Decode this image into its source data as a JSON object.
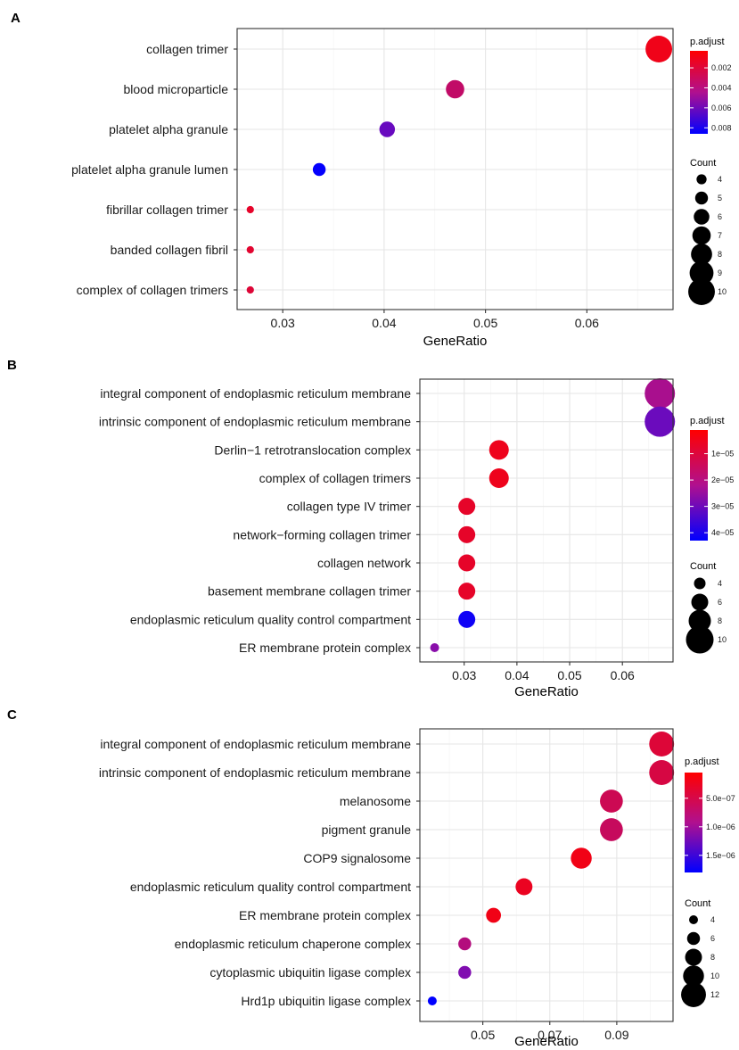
{
  "chart_data": [
    {
      "type": "scatter",
      "panel": "A",
      "xlabel": "GeneRatio",
      "ylabel": "",
      "xlim": [
        0.0255,
        0.0685
      ],
      "xticks": [
        0.03,
        0.04,
        0.05,
        0.06
      ],
      "xtick_labels": [
        "0.03",
        "0.04",
        "0.05",
        "0.06"
      ],
      "categories": [
        "collagen trimer",
        "blood microparticle",
        "platelet alpha granule",
        "platelet alpha granule lumen",
        "fibrillar collagen trimer",
        "banded collagen fibril",
        "complex of collagen trimers"
      ],
      "x": [
        0.0671,
        0.047,
        0.0403,
        0.0336,
        0.0268,
        0.0268,
        0.0268
      ],
      "count": [
        10,
        7,
        6,
        5,
        3,
        3,
        3
      ],
      "p_adjust": [
        0.0008,
        0.0031,
        0.0059,
        0.0085,
        0.0013,
        0.0015,
        0.0017
      ],
      "color_legend": {
        "title": "p.adjust",
        "range": [
          0.0003,
          0.0086
        ],
        "ticks": [
          0.002,
          0.004,
          0.006,
          0.008
        ],
        "tick_labels": [
          "0.002",
          "0.004",
          "0.006",
          "0.008"
        ],
        "low_color": "#ff0000",
        "high_color": "#0000ff"
      },
      "size_legend": {
        "title": "Count",
        "values": [
          4,
          5,
          6,
          7,
          8,
          9,
          10
        ],
        "labels": [
          "4",
          "5",
          "6",
          "7",
          "8",
          "9",
          "10"
        ]
      }
    },
    {
      "type": "scatter",
      "panel": "B",
      "xlabel": "GeneRatio",
      "ylabel": "",
      "xlim": [
        0.0216,
        0.0696
      ],
      "xticks": [
        0.03,
        0.04,
        0.05,
        0.06
      ],
      "xtick_labels": [
        "0.03",
        "0.04",
        "0.05",
        "0.06"
      ],
      "categories": [
        "integral component of endoplasmic reticulum membrane",
        "intrinsic component of endoplasmic reticulum membrane",
        "Derlin−1 retrotranslocation complex",
        "complex of collagen trimers",
        "collagen type IV trimer",
        "network−forming collagen trimer",
        "collagen network",
        "basement membrane collagen trimer",
        "endoplasmic reticulum quality control compartment",
        "ER membrane protein complex"
      ],
      "x": [
        0.0671,
        0.0671,
        0.0366,
        0.0366,
        0.0305,
        0.0305,
        0.0305,
        0.0305,
        0.0305,
        0.0244
      ],
      "count": [
        11,
        11,
        7,
        7,
        6,
        6,
        6,
        6,
        6,
        3
      ],
      "p_adjust": [
        2.1e-05,
        2.9e-05,
        4e-06,
        4e-06,
        6e-06,
        6e-06,
        6e-06,
        6e-06,
        4.1e-05,
        2.5e-05
      ],
      "color_legend": {
        "title": "p.adjust",
        "range": [
          1e-06,
          4.3e-05
        ],
        "ticks": [
          1e-05,
          2e-05,
          3e-05,
          4e-05
        ],
        "tick_labels": [
          "1e−05",
          "2e−05",
          "3e−05",
          "4e−05"
        ],
        "low_color": "#ff0000",
        "high_color": "#0000ff"
      },
      "size_legend": {
        "title": "Count",
        "values": [
          4,
          6,
          8,
          10
        ],
        "labels": [
          "4",
          "6",
          "8",
          "10"
        ]
      }
    },
    {
      "type": "scatter",
      "panel": "C",
      "xlabel": "GeneRatio",
      "ylabel": "",
      "xlim": [
        0.0312,
        0.1068
      ],
      "xticks": [
        0.05,
        0.07,
        0.09
      ],
      "xtick_labels": [
        "0.05",
        "0.07",
        "0.09"
      ],
      "categories": [
        "integral component of endoplasmic reticulum membrane",
        "intrinsic component of endoplasmic reticulum membrane",
        "melanosome",
        "pigment granule",
        "COP9 signalosome",
        "endoplasmic reticulum quality control compartment",
        "ER membrane protein complex",
        "endoplasmic reticulum chaperone complex",
        "cytoplasmic ubiquitin ligase complex",
        "Hrd1p ubiquitin ligase complex"
      ],
      "x": [
        0.1034,
        0.1034,
        0.0884,
        0.0884,
        0.0794,
        0.0623,
        0.0532,
        0.0446,
        0.0446,
        0.0349
      ],
      "count": [
        12,
        12,
        11,
        11,
        10,
        8,
        7,
        6,
        6,
        4
      ],
      "p_adjust": [
        3.5e-07,
        4.2e-07,
        5.2e-07,
        5.8e-07,
        1.4e-07,
        2.1e-07,
        1.4e-07,
        7.8e-07,
        1.1e-06,
        1.8e-06
      ],
      "color_legend": {
        "title": "p.adjust",
        "range": [
          5e-08,
          1.8e-06
        ],
        "ticks": [
          5e-07,
          1e-06,
          1.5e-06
        ],
        "tick_labels": [
          "5.0e−07",
          "1.0e−06",
          "1.5e−06"
        ],
        "low_color": "#ff0000",
        "high_color": "#0000ff"
      },
      "size_legend": {
        "title": "Count",
        "values": [
          4,
          6,
          8,
          10,
          12
        ],
        "labels": [
          "4",
          "6",
          "8",
          "10",
          "12"
        ]
      }
    }
  ]
}
